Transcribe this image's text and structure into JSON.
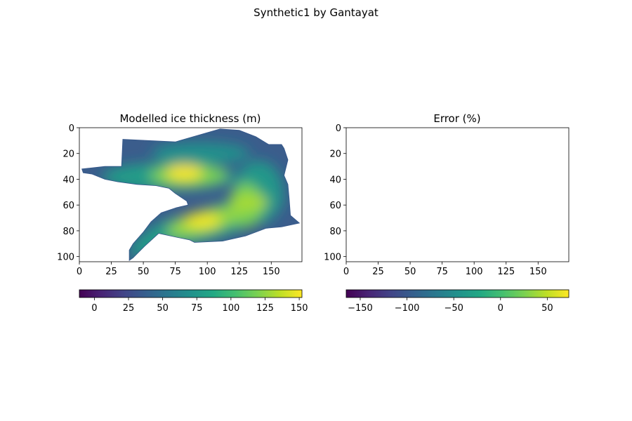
{
  "suptitle": "Synthetic1 by Gantayat",
  "chart_data": [
    {
      "type": "heatmap",
      "title": "Modelled ice thickness (m)",
      "xlabel": "",
      "ylabel": "",
      "xlim": [
        0,
        174
      ],
      "ylim": [
        104,
        0
      ],
      "y_inverted": true,
      "x_ticks": [
        0,
        25,
        50,
        75,
        100,
        125,
        150
      ],
      "y_ticks": [
        0,
        20,
        40,
        60,
        80,
        100
      ],
      "colormap": "viridis",
      "colorbar": {
        "orientation": "horizontal",
        "range": [
          -11,
          152
        ],
        "ticks": [
          0,
          25,
          50,
          75,
          100,
          125,
          150
        ]
      },
      "outline": {
        "north_branch": [
          [
            2,
            32
          ],
          [
            20,
            30
          ],
          [
            33,
            30
          ],
          [
            34,
            9
          ],
          [
            75,
            11
          ],
          [
            110,
            1
          ],
          [
            125,
            2
          ],
          [
            138,
            7
          ],
          [
            148,
            13
          ],
          [
            158,
            13
          ],
          [
            160,
            16
          ],
          [
            163,
            25
          ],
          [
            160,
            37
          ]
        ],
        "east_edge": [
          [
            160,
            37
          ],
          [
            163,
            44
          ],
          [
            164,
            55
          ],
          [
            165,
            68
          ],
          [
            172,
            74
          ],
          [
            158,
            77
          ],
          [
            146,
            78
          ],
          [
            130,
            84
          ],
          [
            112,
            88
          ],
          [
            90,
            89
          ]
        ],
        "south_branch_bottom": [
          [
            90,
            89
          ],
          [
            86,
            87
          ],
          [
            76,
            85
          ],
          [
            62,
            82
          ],
          [
            51,
            92
          ],
          [
            42,
            101
          ],
          [
            39,
            103
          ],
          [
            39,
            95
          ],
          [
            42,
            90
          ],
          [
            50,
            81
          ],
          [
            56,
            73
          ],
          [
            64,
            66
          ],
          [
            76,
            62
          ],
          [
            85,
            60
          ]
        ],
        "inner_gap": [
          [
            85,
            60
          ],
          [
            84,
            57
          ],
          [
            75,
            51
          ],
          [
            70,
            47
          ],
          [
            60,
            45
          ],
          [
            45,
            44
          ],
          [
            30,
            42
          ],
          [
            20,
            40
          ],
          [
            10,
            36
          ],
          [
            3,
            35
          ],
          [
            2,
            32
          ]
        ]
      },
      "thickness_maxima": [
        {
          "x": 82,
          "y": 35,
          "value": 150
        },
        {
          "x": 96,
          "y": 72,
          "value": 148
        },
        {
          "x": 133,
          "y": 58,
          "value": 130
        }
      ]
    },
    {
      "type": "heatmap",
      "title": "Error (%)",
      "xlabel": "",
      "ylabel": "",
      "xlim": [
        0,
        174
      ],
      "ylim": [
        104,
        0
      ],
      "y_inverted": true,
      "x_ticks": [
        0,
        25,
        50,
        75,
        100,
        125,
        150
      ],
      "y_ticks": [
        0,
        20,
        40,
        60,
        80,
        100
      ],
      "values": [],
      "colormap": "viridis",
      "colorbar": {
        "orientation": "horizontal",
        "range": [
          -165,
          73
        ],
        "ticks": [
          -150,
          -100,
          -50,
          0,
          50
        ],
        "tick_labels": [
          "−150",
          "−100",
          "−50",
          "0",
          "50"
        ]
      }
    }
  ]
}
